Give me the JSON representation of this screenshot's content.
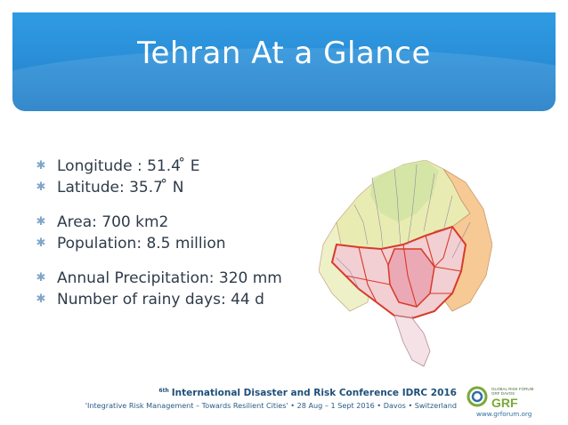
{
  "slide": {
    "title": "Tehran At a Glance",
    "bullets": [
      "Longitude : 51.4 ̊ E",
      "Latitude:  35.7 ̊ N",
      "Area: 700 km2",
      "Population: 8.5 million",
      "Annual Precipitation: 320 mm",
      "Number of rainy days: 44 d"
    ],
    "bullet_icon": "asterisk-bullet-icon"
  },
  "footer": {
    "conference_ordinal": "6th",
    "conference_name": "International Disaster and Risk Conference IDRC 2016",
    "tagline": "'Integrative Risk Management – Towards Resilient Cities' • 28 Aug – 1 Sept 2016 • Davos • Switzerland",
    "logo_text": "GRF",
    "logo_subtext_1": "GLOBAL RISK FORUM",
    "logo_subtext_2": "GRF DAVOS",
    "url": "www.grforum.org"
  },
  "colors": {
    "banner": "#2a8fd8",
    "title_text": "#ffffff",
    "body_text": "#2f3b4a",
    "footer_text": "#1f4f7a",
    "logo_green": "#7aa83a",
    "map_boundary": "#d83a2a"
  }
}
